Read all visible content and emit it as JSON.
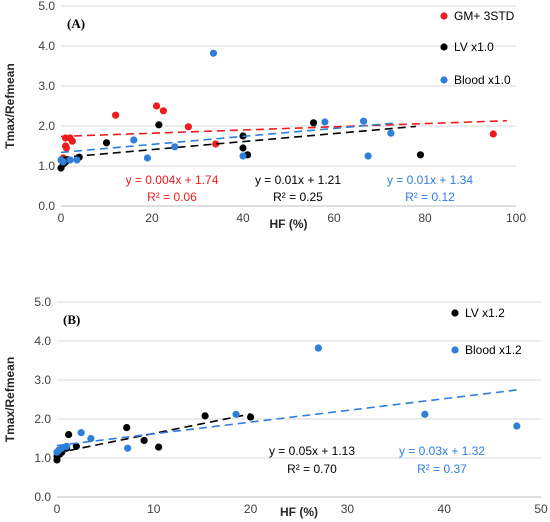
{
  "chart_data": [
    {
      "type": "scatter",
      "panel_label": "(A)",
      "xlabel": "HF (%)",
      "ylabel": "Tmax/Refmean",
      "xlim": [
        0,
        100
      ],
      "ylim": [
        0.0,
        5.0
      ],
      "x_ticks": [
        "0",
        "20",
        "40",
        "60",
        "80",
        "100"
      ],
      "y_ticks": [
        "0.0",
        "1.0",
        "2.0",
        "3.0",
        "4.0",
        "5.0"
      ],
      "legend_position": "top-right",
      "series": [
        {
          "name": "GM+ 3STD",
          "color": "#ee1c1c",
          "points": [
            [
              0.5,
              1.2
            ],
            [
              1,
              1.7
            ],
            [
              1,
              1.5
            ],
            [
              1.2,
              1.45
            ],
            [
              2,
              1.7
            ],
            [
              2.5,
              1.62
            ],
            [
              12,
              2.27
            ],
            [
              21,
              2.5
            ],
            [
              22.5,
              2.38
            ],
            [
              28,
              1.98
            ],
            [
              34,
              1.55
            ],
            [
              95,
              1.8
            ]
          ],
          "trendline": {
            "slope": 0.004,
            "intercept": 1.74,
            "x_range": [
              0,
              98
            ]
          },
          "equation": "y = 0.004x + 1.74",
          "r2": "R² = 0.06"
        },
        {
          "name": "LV x1.0",
          "color": "#000000",
          "points": [
            [
              0,
              0.95
            ],
            [
              0.5,
              1.05
            ],
            [
              1,
              1.1
            ],
            [
              4,
              1.22
            ],
            [
              10,
              1.58
            ],
            [
              21.5,
              2.03
            ],
            [
              40,
              1.75
            ],
            [
              40,
              1.45
            ],
            [
              41,
              1.28
            ],
            [
              55.5,
              2.08
            ],
            [
              79,
              1.28
            ]
          ],
          "trendline": {
            "slope": 0.01,
            "intercept": 1.21,
            "x_range": [
              0,
              78
            ]
          },
          "equation": "y = 0.01x + 1.21",
          "r2": "R² = 0.25"
        },
        {
          "name": "Blood x1.0",
          "color": "#2f7ed8",
          "points": [
            [
              0,
              1.15
            ],
            [
              0.5,
              1.1
            ],
            [
              2,
              1.15
            ],
            [
              3.5,
              1.15
            ],
            [
              16,
              1.65
            ],
            [
              19,
              1.2
            ],
            [
              25,
              1.48
            ],
            [
              33.5,
              3.82
            ],
            [
              40,
              1.25
            ],
            [
              58,
              2.1
            ],
            [
              66.5,
              2.12
            ],
            [
              67.5,
              1.25
            ],
            [
              72.5,
              1.82
            ]
          ],
          "trendline": {
            "slope": 0.01,
            "intercept": 1.34,
            "x_range": [
              0,
              73
            ]
          },
          "equation": "y = 0.01x + 1.34",
          "r2": "R² = 0.12"
        }
      ]
    },
    {
      "type": "scatter",
      "panel_label": "(B)",
      "xlabel": "HF (%)",
      "ylabel": "Tmax/Refmean",
      "xlim": [
        0,
        50
      ],
      "ylim": [
        0.0,
        5.0
      ],
      "x_ticks": [
        "0",
        "10",
        "20",
        "30",
        "40",
        "50"
      ],
      "y_ticks": [
        "0.0",
        "1.0",
        "2.0",
        "3.0",
        "4.0",
        "5.0"
      ],
      "legend_position": "top-right",
      "series": [
        {
          "name": "LV x1.2",
          "color": "#000000",
          "points": [
            [
              0,
              0.95
            ],
            [
              0,
              1.05
            ],
            [
              0.3,
              1.1
            ],
            [
              0.5,
              1.15
            ],
            [
              1,
              1.25
            ],
            [
              1.2,
              1.6
            ],
            [
              2,
              1.3
            ],
            [
              7.2,
              1.78
            ],
            [
              9,
              1.45
            ],
            [
              10.5,
              1.28
            ],
            [
              15.3,
              2.08
            ],
            [
              20,
              2.05
            ]
          ],
          "trendline": {
            "slope": 0.05,
            "intercept": 1.13,
            "x_range": [
              0,
              20
            ]
          },
          "equation": "y = 0.05x + 1.13",
          "r2": "R² = 0.70"
        },
        {
          "name": "Blood x1.2",
          "color": "#2f7ed8",
          "points": [
            [
              0,
              1.15
            ],
            [
              0.2,
              1.2
            ],
            [
              0.5,
              1.25
            ],
            [
              1,
              1.3
            ],
            [
              2.5,
              1.65
            ],
            [
              3.5,
              1.5
            ],
            [
              7.3,
              1.25
            ],
            [
              18.5,
              2.12
            ],
            [
              27,
              3.82
            ],
            [
              38,
              2.12
            ],
            [
              47.5,
              1.82
            ]
          ],
          "trendline": {
            "slope": 0.03,
            "intercept": 1.32,
            "x_range": [
              0,
              47.5
            ]
          },
          "equation": "y = 0.03x + 1.32",
          "r2": "R² = 0.37"
        }
      ]
    }
  ]
}
